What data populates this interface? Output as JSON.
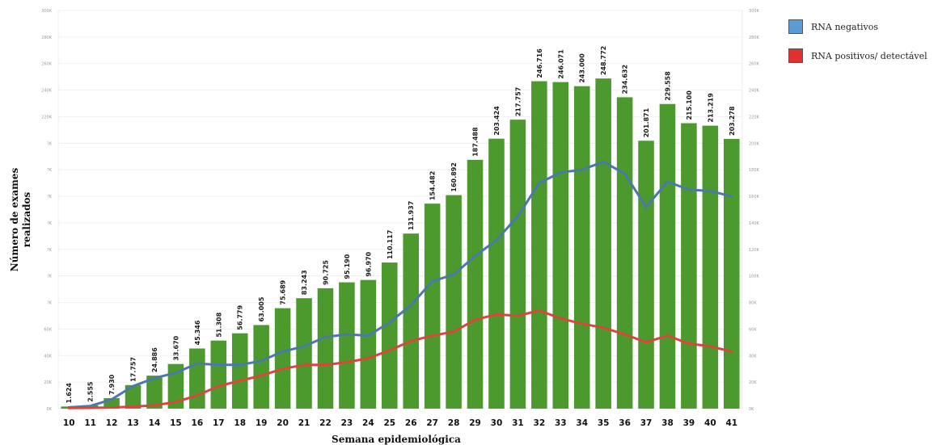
{
  "chart_data": {
    "type": "bar",
    "xlabel": "Semana epidemiológica",
    "ylabel_line1": "Número de exames",
    "ylabel_line2": "realizados",
    "ylim": [
      0,
      300000
    ],
    "y_ticks_left": [
      "0K",
      "20K",
      "40K",
      "60K",
      "?K",
      "?K",
      "?K",
      "?K",
      "?K",
      "?K",
      "?K",
      "220K",
      "240K",
      "260K",
      "280K",
      "300K"
    ],
    "y_ticks_right": [
      "0K",
      "20K",
      "40K",
      "60K",
      "80K",
      "100K",
      "120K",
      "140K",
      "160K",
      "180K",
      "200K",
      "220K",
      "240K",
      "260K",
      "280K",
      "300K"
    ],
    "categories": [
      "10",
      "11",
      "12",
      "13",
      "14",
      "15",
      "16",
      "17",
      "18",
      "19",
      "20",
      "21",
      "22",
      "23",
      "24",
      "25",
      "26",
      "27",
      "28",
      "29",
      "30",
      "31",
      "32",
      "33",
      "34",
      "35",
      "36",
      "37",
      "38",
      "39",
      "40",
      "41"
    ],
    "bar_values": [
      1624,
      2555,
      7930,
      17757,
      24886,
      33670,
      45346,
      51308,
      56779,
      63005,
      75689,
      83243,
      90725,
      95190,
      96970,
      110117,
      131937,
      154482,
      160892,
      187488,
      203424,
      217757,
      246716,
      246071,
      243000,
      248772,
      234632,
      201871,
      229558,
      215100,
      213219,
      203278
    ],
    "bar_labels": [
      "1.624",
      "2.555",
      "7.930",
      "17.757",
      "24.886",
      "33.670",
      "45.346",
      "51.308",
      "56.779",
      "63.005",
      "75.689",
      "83.243",
      "90.725",
      "95.190",
      "96.970",
      "110.117",
      "131.937",
      "154.482",
      "160.892",
      "187.488",
      "203.424",
      "217.757",
      "246.716",
      "246.071",
      "243.000",
      "248.772",
      "234.632",
      "201.871",
      "229.558",
      "215.100",
      "213.219",
      "203.278"
    ],
    "series": [
      {
        "name": "RNA negativos",
        "color": "#4a78a8",
        "values": [
          1000,
          2000,
          7000,
          17000,
          23000,
          27000,
          34000,
          33000,
          33000,
          36000,
          43000,
          47000,
          54000,
          56000,
          55000,
          65000,
          78000,
          96000,
          101000,
          115000,
          127000,
          145000,
          170000,
          178000,
          180000,
          186000,
          177000,
          152000,
          171000,
          165000,
          164000,
          160000
        ]
      },
      {
        "name": "RNA positivos/ detectável",
        "color": "#d8463c",
        "values": [
          400,
          600,
          900,
          1500,
          2500,
          5000,
          10000,
          17000,
          21000,
          25000,
          30000,
          33000,
          33000,
          35000,
          38000,
          44000,
          51000,
          55000,
          58000,
          67000,
          71000,
          70000,
          74000,
          68000,
          64000,
          61000,
          56000,
          50000,
          55000,
          49000,
          47000,
          43000
        ]
      }
    ],
    "bar_color": "#4c9a2e",
    "legend": [
      {
        "label": "RNA negativos",
        "color": "#5b9bd5"
      },
      {
        "label": "RNA positivos/ detectável",
        "color": "#e03030"
      }
    ],
    "legend_position": "top-right",
    "grid": true
  }
}
